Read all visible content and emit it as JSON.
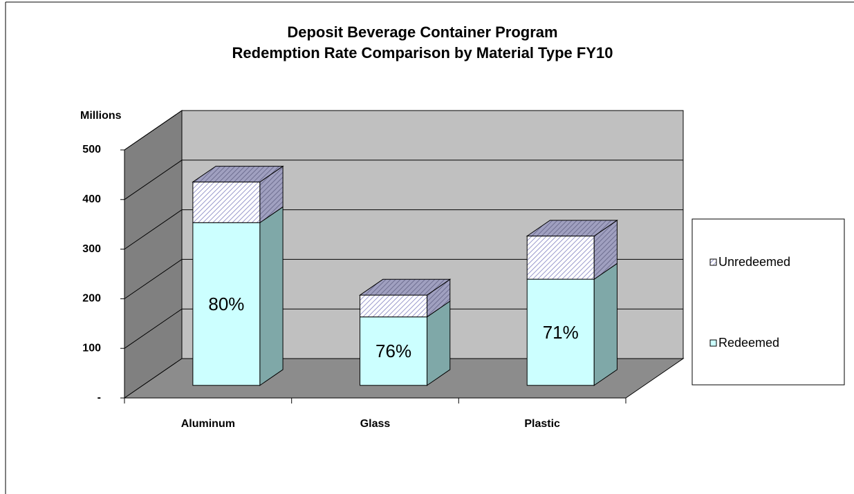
{
  "chart_data": {
    "type": "bar3d_stacked",
    "title_lines": [
      "Deposit Beverage Container Program",
      "Redemption Rate Comparison by Material Type FY10"
    ],
    "y_label": "Millions",
    "categories": [
      "Aluminum",
      "Glass",
      "Plastic"
    ],
    "series": [
      {
        "name": "Redeemed",
        "color": "#ccffff",
        "values": [
          328,
          138,
          214
        ]
      },
      {
        "name": "Unredeemed",
        "color": "#ccccff",
        "values": [
          82,
          44,
          87
        ]
      }
    ],
    "bar_labels": [
      "80%",
      "76%",
      "71%"
    ],
    "ylim": [
      0,
      500
    ],
    "yticks": [
      {
        "value": 0,
        "label": "-"
      },
      100,
      200,
      300,
      400,
      500
    ],
    "grid": true,
    "legend": "right"
  }
}
